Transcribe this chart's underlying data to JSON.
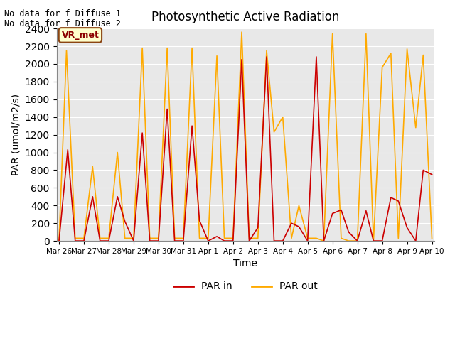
{
  "title": "Photosynthetic Active Radiation",
  "xlabel": "Time",
  "ylabel": "PAR (umol/m2/s)",
  "ylim": [
    0,
    2400
  ],
  "yticks": [
    0,
    200,
    400,
    600,
    800,
    1000,
    1200,
    1400,
    1600,
    1800,
    2000,
    2200,
    2400
  ],
  "background_color": "#e8e8e8",
  "no_data_text_1": "No data for f_Diffuse_1",
  "no_data_text_2": "No data for f_Diffuse_2",
  "vr_met_label": "VR_met",
  "legend_colors": [
    "#cc0000",
    "#ffaa00"
  ],
  "legend_labels": [
    "PAR in",
    "PAR out"
  ],
  "x_tick_labels": [
    "Mar 26",
    "Mar 27",
    "Mar 28",
    "Mar 29",
    "Mar 30",
    "Mar 31",
    "Apr 1",
    "Apr 2",
    "Apr 3",
    "Apr 4",
    "Apr 5",
    "Apr 6",
    "Apr 7",
    "Apr 8",
    "Apr 9",
    "Apr 10"
  ],
  "par_in_x": [
    0.0,
    0.35,
    0.65,
    1.0,
    1.35,
    1.65,
    2.0,
    2.35,
    2.65,
    3.0,
    3.35,
    3.65,
    4.0,
    4.35,
    4.65,
    5.0,
    5.35,
    5.65,
    6.0,
    6.35,
    6.65,
    7.0,
    7.35,
    7.65,
    8.0,
    8.35,
    8.65,
    9.0,
    9.35,
    9.65,
    10.0,
    10.35,
    10.65,
    11.0,
    11.35,
    11.65,
    12.0,
    12.35,
    12.65,
    13.0,
    13.35,
    13.65,
    14.0,
    14.35,
    14.65,
    15.0
  ],
  "par_in_y": [
    0,
    1030,
    0,
    0,
    500,
    0,
    0,
    500,
    220,
    0,
    1220,
    0,
    0,
    1490,
    0,
    0,
    1300,
    230,
    0,
    50,
    0,
    0,
    2050,
    0,
    150,
    2080,
    0,
    0,
    200,
    160,
    0,
    2080,
    0,
    310,
    350,
    100,
    0,
    340,
    0,
    0,
    490,
    450,
    150,
    0,
    800,
    750
  ],
  "par_out_x": [
    0.0,
    0.3,
    0.65,
    1.0,
    1.35,
    1.65,
    2.0,
    2.35,
    2.65,
    3.0,
    3.35,
    3.65,
    4.0,
    4.35,
    4.65,
    5.0,
    5.35,
    5.65,
    6.0,
    6.35,
    6.65,
    7.0,
    7.35,
    7.65,
    8.0,
    8.35,
    8.65,
    9.0,
    9.35,
    9.65,
    10.0,
    10.35,
    10.65,
    11.0,
    11.35,
    11.65,
    12.0,
    12.35,
    12.65,
    13.0,
    13.35,
    13.65,
    14.0,
    14.35,
    14.65,
    15.0
  ],
  "par_out_y": [
    0,
    2150,
    30,
    30,
    840,
    30,
    30,
    1000,
    30,
    30,
    2180,
    30,
    30,
    2180,
    30,
    30,
    2180,
    30,
    30,
    2090,
    30,
    30,
    2360,
    30,
    30,
    2150,
    1230,
    1400,
    30,
    400,
    30,
    30,
    0,
    2340,
    30,
    0,
    0,
    2340,
    0,
    1960,
    2120,
    30,
    2170,
    1280,
    2100,
    30
  ]
}
